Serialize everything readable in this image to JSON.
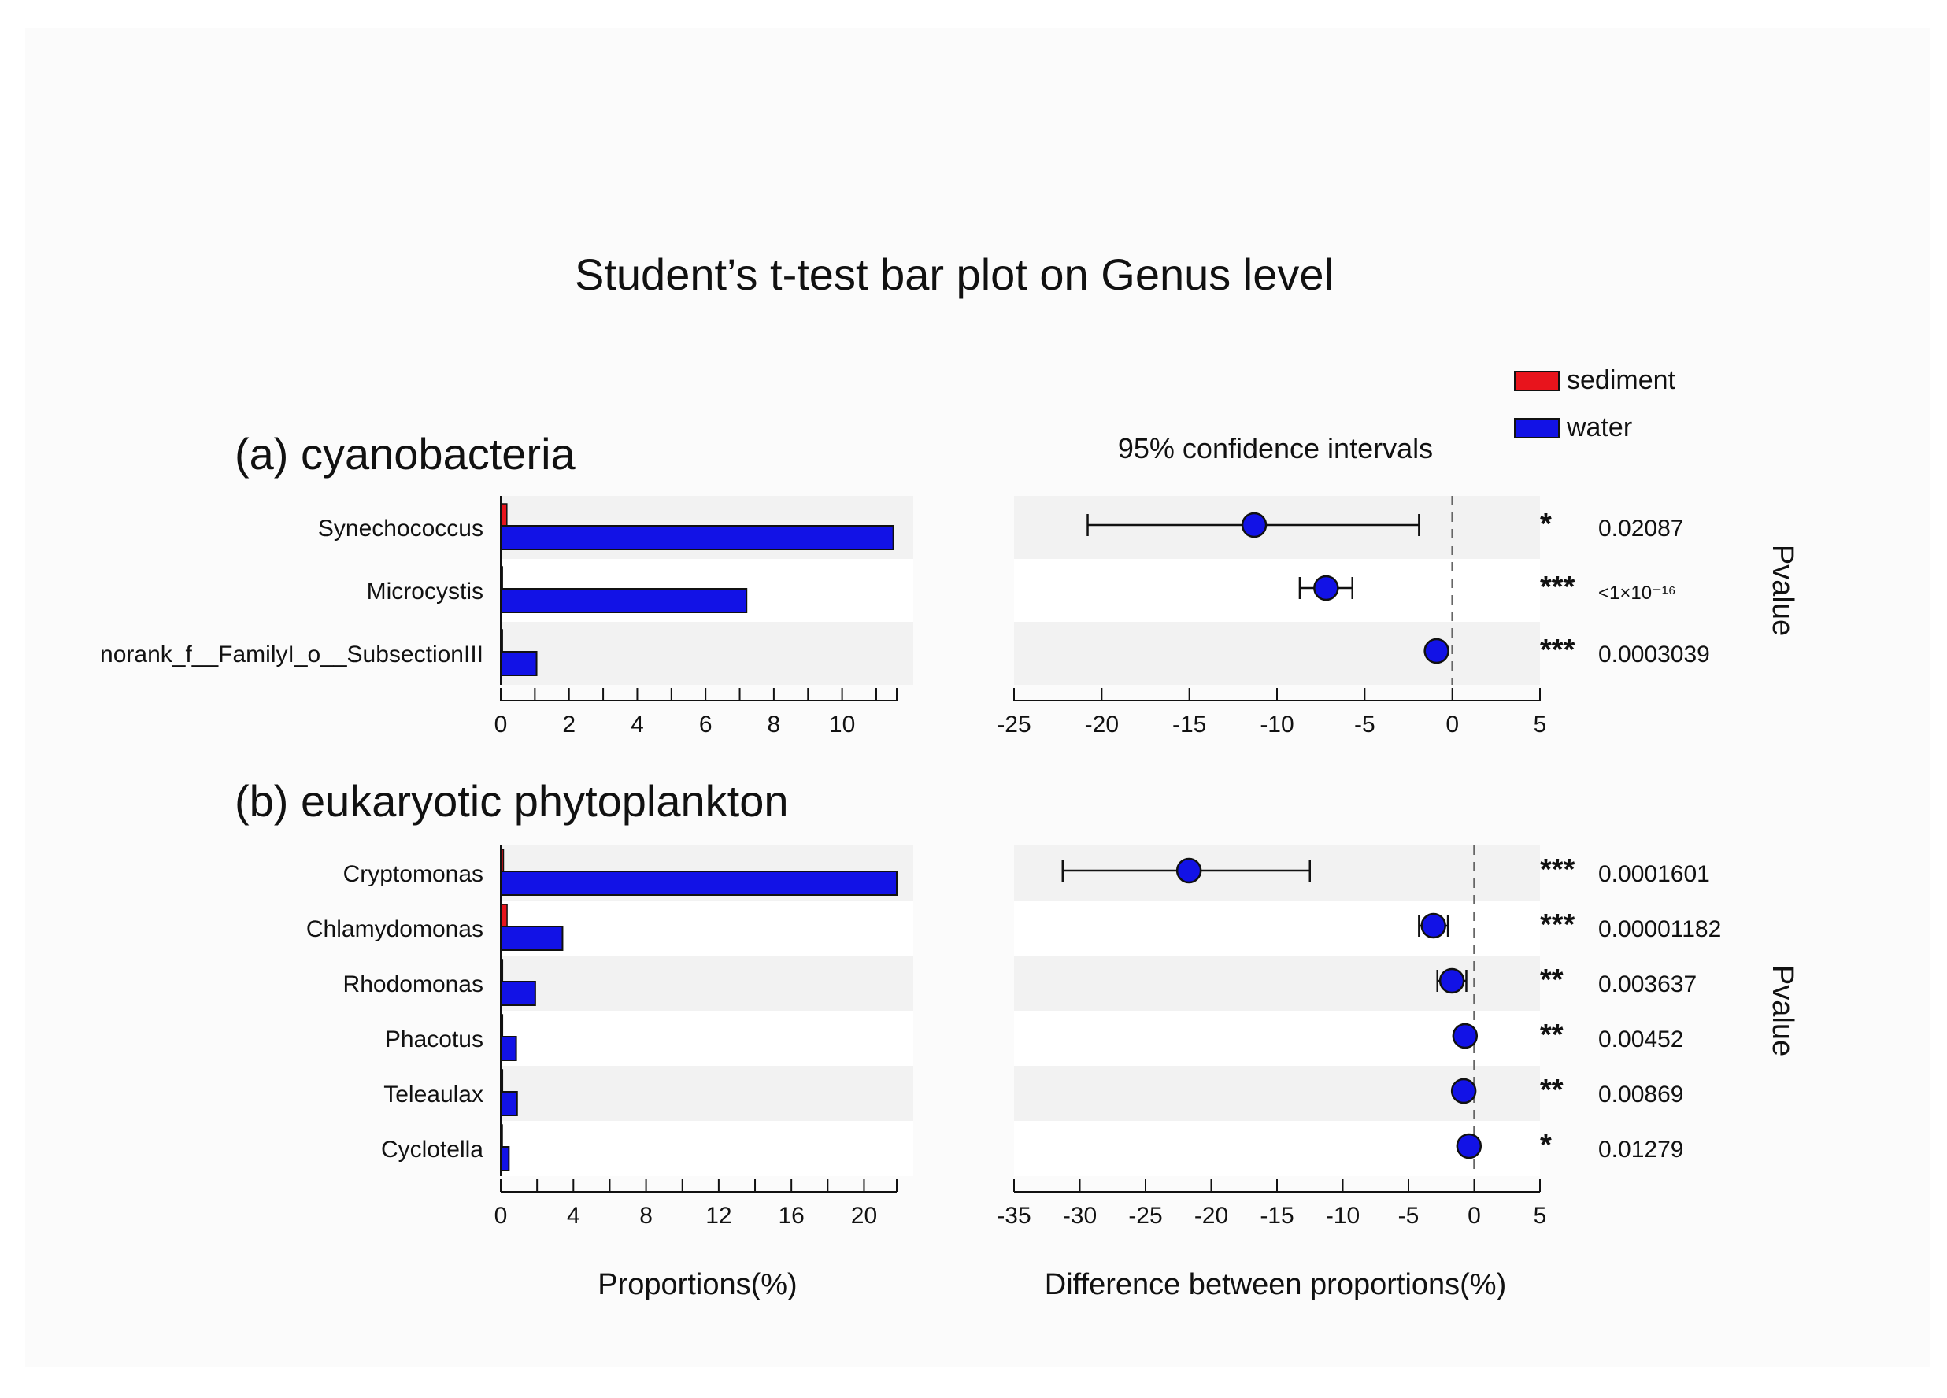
{
  "title": "Student’s t-test bar plot on Genus level",
  "legend": {
    "position": "top-right",
    "items": [
      {
        "label": "sediment",
        "color": "#e8141c"
      },
      {
        "label": "water",
        "color": "#1212e6"
      }
    ]
  },
  "ci_title": "95% confidence intervals",
  "pvalue_label": "Pvalue",
  "xlabel_left": "Proportions(%)",
  "xlabel_right": "Difference between proportions(%)",
  "colors": {
    "sediment": "#e8141c",
    "water": "#1212e6",
    "stars": "#f26b6b",
    "band": "#f2f2f2"
  },
  "chart_data": [
    {
      "type": "bar",
      "panel": "(a) cyanobacteria",
      "categories": [
        "Synechococcus",
        "Microcystis",
        "norank_f__FamilyI_o__SubsectionIII"
      ],
      "series": [
        {
          "name": "sediment",
          "values": [
            0.18,
            0.05,
            0.05
          ]
        },
        {
          "name": "water",
          "values": [
            11.5,
            7.2,
            1.05
          ]
        }
      ],
      "xticks": [
        "0",
        "2",
        "4",
        "6",
        "8",
        "10"
      ],
      "xlim": [
        0,
        11.6
      ],
      "ci": {
        "type": "scatter",
        "diff": [
          -11.3,
          -7.2,
          -0.9
        ],
        "lower": [
          -20.8,
          -8.7,
          -1.2
        ],
        "upper": [
          -1.9,
          -5.7,
          -0.6
        ],
        "xlim": [
          -25,
          5
        ],
        "xticks": [
          "-25",
          "-20",
          "-15",
          "-10",
          "-5",
          "0",
          "5"
        ]
      },
      "stars": [
        "*",
        "***",
        "***"
      ],
      "pvalues": [
        "0.02087",
        "<1×10⁻¹⁶",
        "0.0003039"
      ]
    },
    {
      "type": "bar",
      "panel": "(b) eukaryotic phytoplankton",
      "categories": [
        "Cryptomonas",
        "Chlamydomonas",
        "Rhodomonas",
        "Phacotus",
        "Teleaulax",
        "Cyclotella"
      ],
      "series": [
        {
          "name": "sediment",
          "values": [
            0.15,
            0.35,
            0.1,
            0.1,
            0.1,
            0.05
          ]
        },
        {
          "name": "water",
          "values": [
            21.8,
            3.4,
            1.9,
            0.85,
            0.9,
            0.45
          ]
        }
      ],
      "xticks": [
        "0",
        "4",
        "8",
        "12",
        "16",
        "20"
      ],
      "xlim": [
        0,
        21.8
      ],
      "ci": {
        "type": "scatter",
        "diff": [
          -21.7,
          -3.1,
          -1.7,
          -0.7,
          -0.8,
          -0.4
        ],
        "lower": [
          -31.3,
          -4.2,
          -2.8,
          -1.0,
          -1.1,
          -0.6
        ],
        "upper": [
          -12.5,
          -2.0,
          -0.6,
          -0.4,
          -0.5,
          -0.2
        ],
        "xlim": [
          -35,
          5
        ],
        "xticks": [
          "-35",
          "-30",
          "-25",
          "-20",
          "-15",
          "-10",
          "-5",
          "0",
          "5"
        ]
      },
      "stars": [
        "***",
        "***",
        "**",
        "**",
        "**",
        "*"
      ],
      "pvalues": [
        "0.0001601",
        "0.00001182",
        "0.003637",
        "0.00452",
        "0.00869",
        "0.01279"
      ]
    }
  ]
}
